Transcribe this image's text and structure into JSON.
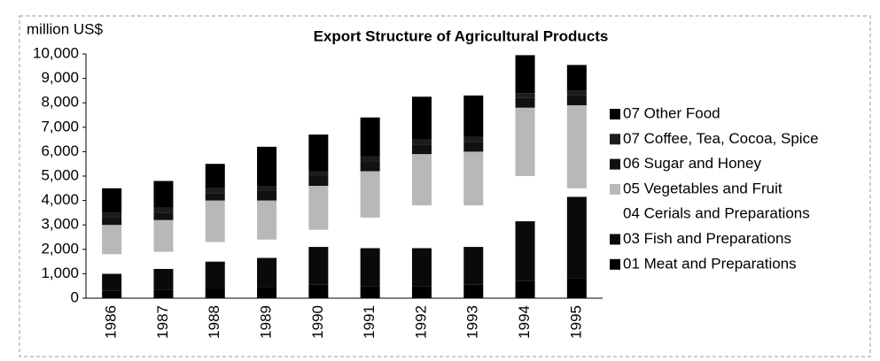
{
  "chart_data": {
    "type": "stacked_bar",
    "title": "Export Structure of Agricultural Products",
    "y_label": "million US$",
    "categories": [
      "1986",
      "1987",
      "1988",
      "1989",
      "1990",
      "1991",
      "1992",
      "1993",
      "1994",
      "1995"
    ],
    "series": [
      {
        "name": "01 Meat and Preparations",
        "color": "#000000",
        "values": [
          300,
          350,
          400,
          450,
          550,
          500,
          500,
          550,
          700,
          800
        ]
      },
      {
        "name": "03 Fish and Preparations",
        "color": "#0a0a0a",
        "values": [
          700,
          850,
          1100,
          1200,
          1550,
          1550,
          1550,
          1550,
          2450,
          3350
        ]
      },
      {
        "name": "04 Cerials and Preparations",
        "color": "#ffffff",
        "values": [
          800,
          700,
          800,
          750,
          700,
          1250,
          1750,
          1700,
          1850,
          350
        ]
      },
      {
        "name": "05 Vegetables and Fruit",
        "color": "#b8b8b8",
        "values": [
          1200,
          1300,
          1700,
          1600,
          1800,
          1900,
          2100,
          2200,
          2800,
          3400
        ]
      },
      {
        "name": "06 Sugar and Honey",
        "color": "#111111",
        "values": [
          300,
          300,
          300,
          400,
          400,
          400,
          400,
          400,
          400,
          400
        ]
      },
      {
        "name": "07 Coffee, Tea, Cocoa, Spice",
        "color": "#1c1c1c",
        "values": [
          200,
          200,
          200,
          200,
          200,
          200,
          200,
          200,
          200,
          200
        ]
      },
      {
        "name": "07 Other Food",
        "color": "#000000",
        "values": [
          1000,
          1100,
          1000,
          1600,
          1500,
          1600,
          1750,
          1700,
          1550,
          1050
        ]
      }
    ],
    "ylim": [
      0,
      10000
    ],
    "yticks": [
      0,
      {
        "value": 1000,
        "label": "1,000"
      },
      {
        "value": 2000,
        "label": "2,000"
      },
      {
        "value": 3000,
        "label": "3,000"
      },
      {
        "value": 4000,
        "label": "4,000"
      },
      {
        "value": 5000,
        "label": "5,000"
      },
      {
        "value": 6000,
        "label": "6,000"
      },
      {
        "value": 7000,
        "label": "7,000"
      },
      {
        "value": 8000,
        "label": "8,000"
      },
      {
        "value": 9000,
        "label": "9,000"
      },
      {
        "value": 10000,
        "label": "10,000"
      }
    ]
  }
}
